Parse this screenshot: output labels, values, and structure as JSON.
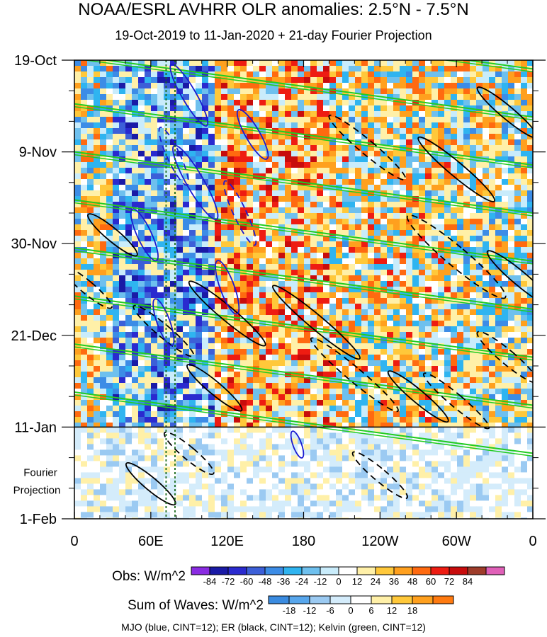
{
  "chart_data": {
    "type": "heatmap",
    "title": "NOAA/ESRL AVHRR OLR anomalies: 2.5°N - 7.5°N",
    "subtitle": "19-Oct-2019 to 11-Jan-2020 + 21-day Fourier Projection",
    "x_tick_labels": [
      "0",
      "60E",
      "120E",
      "180",
      "120W",
      "60W",
      "0"
    ],
    "x_tick_lon": [
      0,
      60,
      120,
      180,
      240,
      300,
      360
    ],
    "xlim": [
      0,
      360
    ],
    "y_tick_labels": [
      "19-Oct",
      "9-Nov",
      "30-Nov",
      "21-Dec",
      "11-Jan",
      "1-Feb"
    ],
    "y_tick_day": [
      0,
      21,
      42,
      63,
      84,
      105
    ],
    "ylim_days": [
      0,
      105
    ],
    "projection_label": "Fourier Projection",
    "projection_start_day": 84,
    "colorbars": [
      {
        "label": "Obs: W/m^2",
        "levels": [
          "-84",
          "-72",
          "-60",
          "-48",
          "-36",
          "-24",
          "-12",
          "0",
          "12",
          "24",
          "36",
          "48",
          "60",
          "72",
          "84"
        ],
        "colors": [
          "#8a2be2",
          "#1a1aa6",
          "#2a2acf",
          "#3c5fd8",
          "#3c8ce6",
          "#2fb4f0",
          "#6ec0ee",
          "#c9ecfb",
          "#ffffff",
          "#fff0a8",
          "#ffc83a",
          "#ffa01e",
          "#ff6a10",
          "#ee1c12",
          "#c80c0c",
          "#9e3c2a",
          "#e060b8"
        ]
      },
      {
        "label": "Sum of Waves: W/m^2",
        "levels": [
          "-18",
          "-12",
          "-6",
          "0",
          "6",
          "12",
          "18"
        ],
        "colors": [
          "#3a8be0",
          "#57a6ec",
          "#9bcaf2",
          "#d4ecfb",
          "#ffffff",
          "#fff0a8",
          "#ffc83a",
          "#ffa01e",
          "#ff7a10"
        ]
      }
    ],
    "series": [
      {
        "name": "MJO",
        "color": "#1a1ad0",
        "cint": 12
      },
      {
        "name": "ER",
        "color": "#000000",
        "cint": 12
      },
      {
        "name": "Kelvin",
        "color": "#22cc22",
        "cint": 12
      }
    ],
    "footnote": "MJO (blue, CINT=12); ER (black, CINT=12); Kelvin (green, CINT=12)"
  }
}
